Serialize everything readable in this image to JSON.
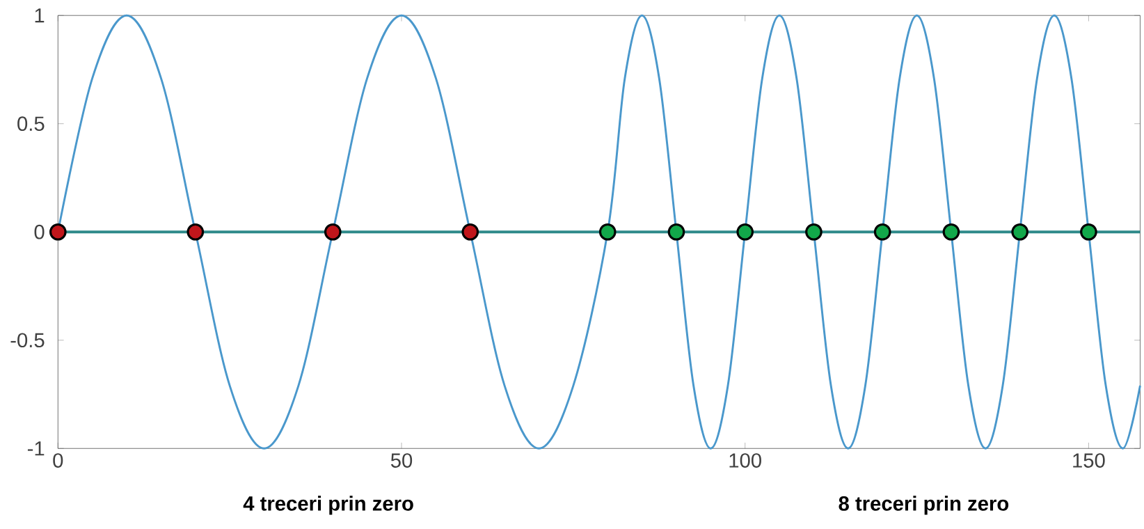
{
  "chart_data": {
    "type": "line",
    "xlim": [
      0,
      157.5
    ],
    "ylim": [
      -1,
      1
    ],
    "xticks": [
      0,
      50,
      100,
      150
    ],
    "yticks": [
      -1,
      -0.5,
      0,
      0.5,
      1
    ],
    "series": [
      {
        "color": "#4a98cc",
        "x": [
          0,
          5,
          10,
          15,
          20,
          25,
          30,
          35,
          40,
          45,
          50,
          55,
          60,
          65,
          70,
          75,
          80,
          82.5,
          85,
          87.5,
          90,
          92.5,
          95,
          97.5,
          100,
          102.5,
          105,
          107.5,
          110,
          112.5,
          115,
          117.5,
          120,
          122.5,
          125,
          127.5,
          130,
          132.5,
          135,
          137.5,
          140,
          142.5,
          145,
          147.5,
          150,
          152.5,
          155,
          157.5
        ],
        "values": [
          0,
          0.71,
          1,
          0.71,
          0,
          -0.71,
          -1,
          -0.71,
          0,
          0.71,
          1,
          0.71,
          0,
          -0.71,
          -1,
          -0.71,
          0,
          0.71,
          1,
          0.71,
          0,
          -0.71,
          -1,
          -0.71,
          0,
          0.71,
          1,
          0.71,
          0,
          -0.71,
          -1,
          -0.71,
          0,
          0.71,
          1,
          0.71,
          0,
          -0.71,
          -1,
          -0.71,
          0,
          0.71,
          1,
          0.71,
          0,
          -0.71,
          -1,
          -0.71
        ]
      },
      {
        "type": "scatter",
        "color": "#c0161b",
        "marker": "circle",
        "x": [
          0,
          20,
          40,
          60
        ],
        "values": [
          0,
          0,
          0,
          0
        ]
      },
      {
        "type": "scatter",
        "color": "#12a84a",
        "marker": "circle",
        "x": [
          80,
          90,
          100,
          110,
          120,
          130,
          140,
          150
        ],
        "values": [
          0,
          0,
          0,
          0,
          0,
          0,
          0,
          0
        ]
      }
    ],
    "ref_lines": [
      {
        "axis": "y",
        "value": 0,
        "color": "#2f8a8a"
      }
    ],
    "annotations": [
      "4 treceri prin zero",
      "8 treceri prin zero"
    ]
  }
}
